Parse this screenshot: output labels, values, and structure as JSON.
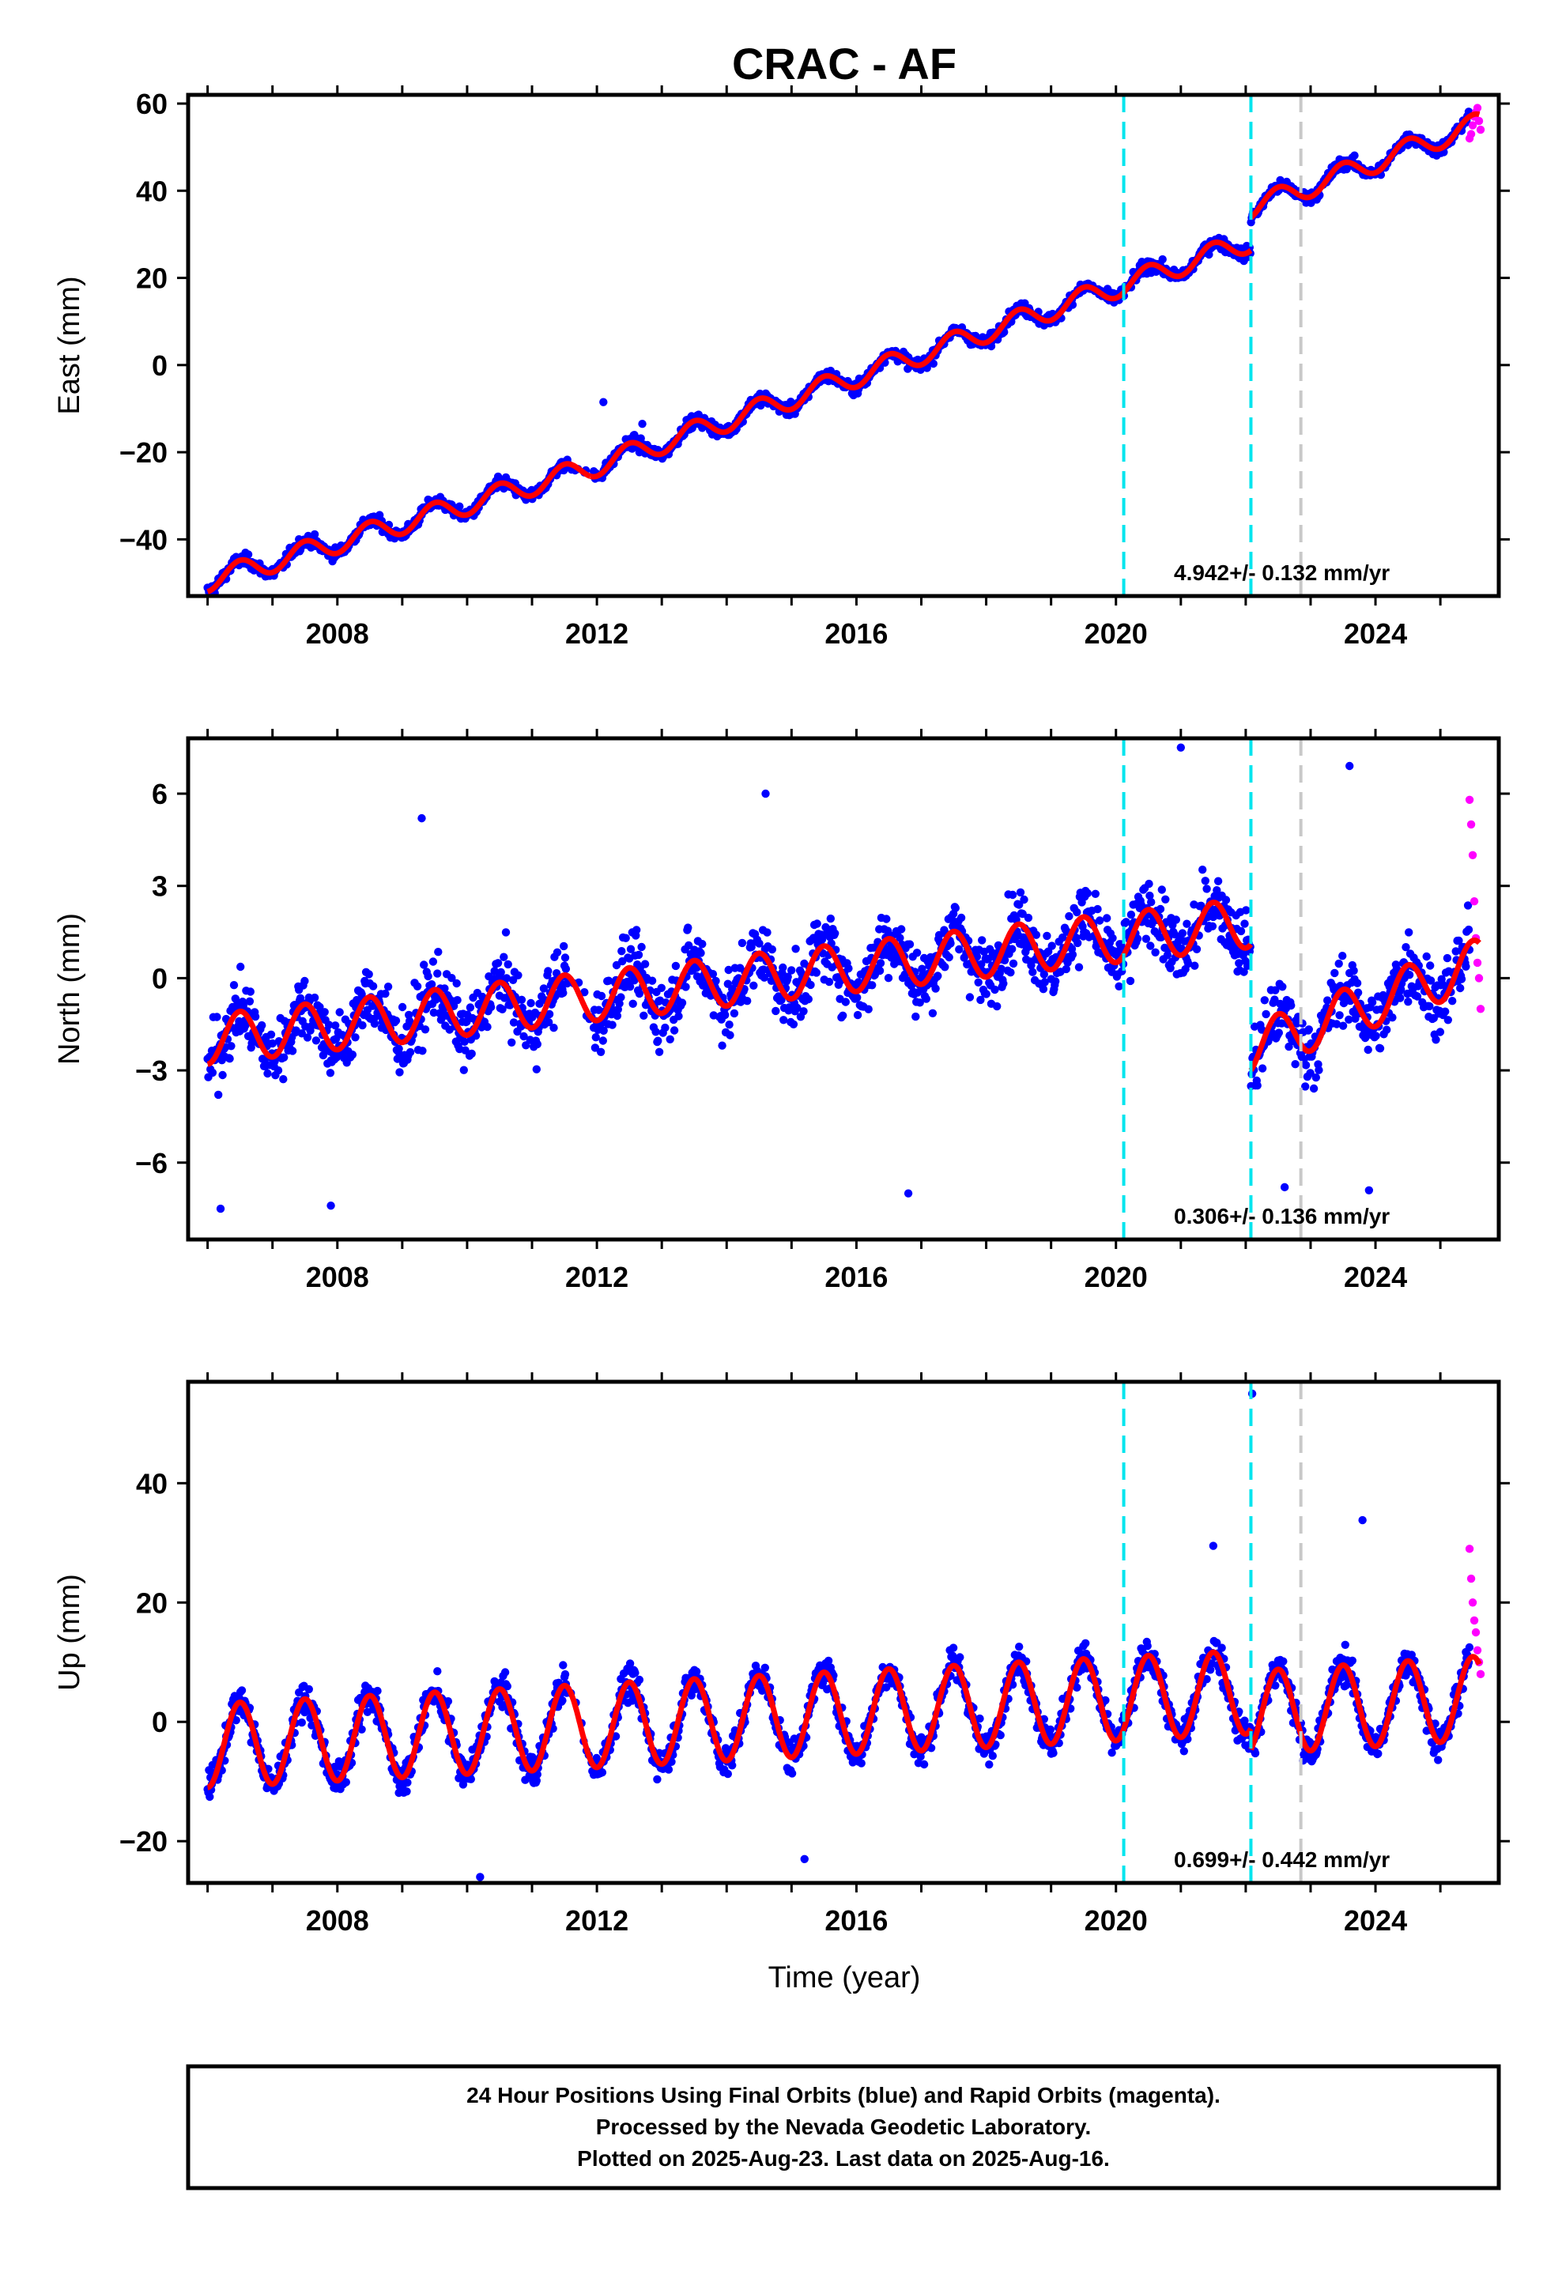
{
  "figure": {
    "title": "CRAC - AF",
    "xlabel": "Time (year)",
    "caption": [
      "24 Hour Positions Using Final Orbits (blue) and Rapid Orbits (magenta).",
      "Processed by the Nevada Geodetic Laboratory.",
      "Plotted on 2025-Aug-23. Last data on 2025-Aug-16."
    ],
    "colors": {
      "final_orbits": "#0000ff",
      "rapid_orbits": "#ff00ff",
      "model_fit": "#ff0000",
      "event_line_cyan": "#00e5ee",
      "event_line_gray": "#c8c8c8",
      "frame": "#000000"
    }
  },
  "chart_data": [
    {
      "type": "scatter",
      "ylabel": "East (mm)",
      "rate_text": "4.942+/- 0.132 mm/yr",
      "xlim": [
        2005.7,
        2025.9
      ],
      "ylim": [
        -53,
        62
      ],
      "xticks": [
        2008,
        2012,
        2016,
        2020,
        2024
      ],
      "yticks": [
        -40,
        -20,
        0,
        20,
        40,
        60
      ],
      "vlines": [
        {
          "x": 2020.12,
          "color": "cyan"
        },
        {
          "x": 2022.08,
          "color": "cyan"
        },
        {
          "x": 2022.85,
          "color": "gray"
        }
      ],
      "model": {
        "segments": [
          {
            "x": [
              2006.0,
              2011.9
            ],
            "y": [
              -49.5,
              -23.5
            ]
          },
          {
            "x": [
              2011.9,
              2022.08
            ],
            "y": [
              -23.5,
              28.5
            ]
          },
          {
            "x": [
              2022.08,
              2025.6
            ],
            "y": [
              36.0,
              55.5
            ]
          }
        ],
        "seasonal_amplitude": 2.5
      },
      "series": [
        {
          "name": "Final Orbits (blue)",
          "x_range": [
            2006.0,
            2025.45
          ],
          "noise": 1.8,
          "outliers": [
            [
              2012.1,
              -8.5
            ],
            [
              2012.7,
              -13.5
            ]
          ]
        },
        {
          "name": "Rapid Orbits (magenta)",
          "x_range": [
            2025.45,
            2025.62
          ],
          "values": [
            52,
            53,
            55,
            57,
            58,
            59,
            56,
            54
          ]
        }
      ]
    },
    {
      "type": "scatter",
      "ylabel": "North (mm)",
      "rate_text": "0.306+/- 0.136 mm/yr",
      "xlim": [
        2005.7,
        2025.9
      ],
      "ylim": [
        -8.5,
        7.8
      ],
      "xticks": [
        2008,
        2012,
        2016,
        2020,
        2024
      ],
      "yticks": [
        -6,
        -3,
        0,
        3,
        6
      ],
      "vlines": [
        {
          "x": 2020.12,
          "color": "cyan"
        },
        {
          "x": 2022.08,
          "color": "cyan"
        },
        {
          "x": 2022.85,
          "color": "gray"
        }
      ],
      "model": {
        "segments": [
          {
            "x": [
              2006.0,
              2022.08
            ],
            "y": [
              -2.0,
              1.8
            ]
          },
          {
            "x": [
              2022.08,
              2025.6
            ],
            "y": [
              -2.3,
              0.5
            ]
          }
        ],
        "seasonal_amplitude": 0.8
      },
      "series": [
        {
          "name": "Final Orbits (blue)",
          "x_range": [
            2006.0,
            2025.45
          ],
          "noise": 1.4,
          "outliers": [
            [
              2006.2,
              -7.5
            ],
            [
              2007.9,
              -7.4
            ],
            [
              2009.3,
              5.2
            ],
            [
              2014.6,
              6.0
            ],
            [
              2016.8,
              -7.0
            ],
            [
              2021.0,
              7.5
            ],
            [
              2023.6,
              6.9
            ],
            [
              2022.6,
              -6.8
            ],
            [
              2023.9,
              -6.9
            ]
          ]
        },
        {
          "name": "Rapid Orbits (magenta)",
          "x_range": [
            2025.45,
            2025.62
          ],
          "values": [
            5.8,
            5.0,
            4.0,
            2.5,
            1.3,
            0.5,
            0.0,
            -1.0
          ]
        }
      ]
    },
    {
      "type": "scatter",
      "ylabel": "Up (mm)",
      "rate_text": "0.699+/- 0.442 mm/yr",
      "xlim": [
        2005.7,
        2025.9
      ],
      "ylim": [
        -27,
        57
      ],
      "xticks": [
        2008,
        2012,
        2016,
        2020,
        2024
      ],
      "yticks": [
        -20,
        0,
        20,
        40
      ],
      "vlines": [
        {
          "x": 2020.12,
          "color": "cyan"
        },
        {
          "x": 2022.08,
          "color": "cyan"
        },
        {
          "x": 2022.85,
          "color": "gray"
        }
      ],
      "model": {
        "segments": [
          {
            "x": [
              2006.0,
              2022.08
            ],
            "y": [
              -4.0,
              5.0
            ]
          },
          {
            "x": [
              2022.08,
              2025.6
            ],
            "y": [
              1.5,
              4.0
            ]
          }
        ],
        "seasonal_amplitude": 7.0
      },
      "series": [
        {
          "name": "Final Orbits (blue)",
          "x_range": [
            2006.0,
            2025.45
          ],
          "noise": 3.6,
          "outliers": [
            [
              2010.2,
              -26.0
            ],
            [
              2015.2,
              -23.0
            ],
            [
              2021.5,
              29.5
            ],
            [
              2022.1,
              55.0
            ],
            [
              2023.8,
              33.8
            ]
          ]
        },
        {
          "name": "Rapid Orbits (magenta)",
          "x_range": [
            2025.45,
            2025.62
          ],
          "values": [
            29,
            24,
            20,
            17,
            15,
            12,
            10,
            8
          ]
        }
      ]
    }
  ]
}
